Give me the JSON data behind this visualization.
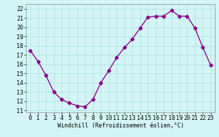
{
  "x": [
    0,
    1,
    2,
    3,
    4,
    5,
    6,
    7,
    8,
    9,
    10,
    11,
    12,
    13,
    14,
    15,
    16,
    17,
    18,
    19,
    20,
    21,
    22,
    23
  ],
  "y": [
    17.5,
    16.3,
    14.8,
    13.0,
    12.2,
    11.8,
    11.5,
    11.4,
    12.2,
    14.0,
    15.3,
    16.7,
    17.8,
    18.7,
    19.9,
    21.1,
    21.2,
    21.2,
    21.8,
    21.2,
    21.2,
    19.9,
    17.8,
    15.9
  ],
  "line_color": "#8B008B",
  "marker": "D",
  "markersize": 2.5,
  "linewidth": 1.0,
  "xlabel": "Windchill (Refroidissement éolien,°C)",
  "xlabel_fontsize": 6.0,
  "ylabel_ticks": [
    11,
    12,
    13,
    14,
    15,
    16,
    17,
    18,
    19,
    20,
    21,
    22
  ],
  "xlim": [
    -0.5,
    23.5
  ],
  "ylim": [
    10.8,
    22.5
  ],
  "bg_color": "#d4f5f5",
  "grid_color": "#aadddd",
  "tick_fontsize": 6.0,
  "xtick_labels": [
    "0",
    "1",
    "2",
    "3",
    "4",
    "5",
    "6",
    "7",
    "8",
    "9",
    "10",
    "11",
    "12",
    "13",
    "14",
    "15",
    "16",
    "17",
    "18",
    "19",
    "20",
    "21",
    "22",
    "23"
  ]
}
